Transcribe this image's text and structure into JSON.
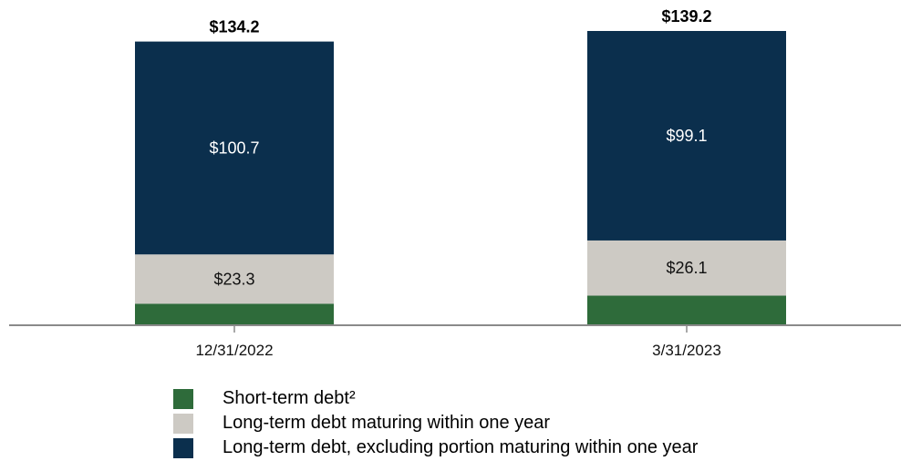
{
  "chart_data": {
    "type": "bar",
    "stacked": true,
    "categories": [
      "12/31/2022",
      "3/31/2023"
    ],
    "series": [
      {
        "name": "Short-term debt²",
        "values": [
          10.2,
          14.0
        ],
        "color": "#2e6b3a",
        "label_text": [
          "",
          ""
        ]
      },
      {
        "name": "Long-term debt maturing within one year",
        "values": [
          23.3,
          26.1
        ],
        "color": "#cdcac4",
        "label_text": [
          "$23.3",
          "$26.1"
        ]
      },
      {
        "name": "Long-term debt, excluding portion maturing within one year",
        "values": [
          100.7,
          99.1
        ],
        "color": "#0b2f4d",
        "label_text": [
          "$100.7",
          "$99.1"
        ]
      }
    ],
    "totals": [
      "$134.2",
      "$139.2"
    ],
    "ylim": [
      0,
      139.2
    ],
    "legend_position": "bottom"
  }
}
